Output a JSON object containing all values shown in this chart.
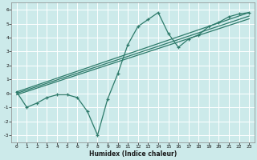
{
  "xlabel": "Humidex (Indice chaleur)",
  "background_color": "#cceaea",
  "grid_color": "#ffffff",
  "line_color": "#2d7a6a",
  "xlim": [
    -0.5,
    23.5
  ],
  "ylim": [
    -3.5,
    6.5
  ],
  "xticks": [
    0,
    1,
    2,
    3,
    4,
    5,
    6,
    7,
    8,
    9,
    10,
    11,
    12,
    13,
    14,
    15,
    16,
    17,
    18,
    19,
    20,
    21,
    22,
    23
  ],
  "yticks": [
    -3,
    -2,
    -1,
    0,
    1,
    2,
    3,
    4,
    5,
    6
  ],
  "line1_x": [
    0,
    1,
    2,
    3,
    4,
    5,
    6,
    7,
    8,
    9,
    10,
    11,
    12,
    13,
    14,
    15,
    16,
    17,
    18,
    19,
    20,
    21,
    22,
    23
  ],
  "line1_y": [
    0.1,
    -1.0,
    -0.7,
    -0.3,
    -0.1,
    -0.1,
    -0.3,
    -1.3,
    -3.0,
    -0.4,
    1.4,
    3.5,
    4.8,
    5.3,
    5.8,
    4.3,
    3.3,
    3.9,
    4.2,
    4.8,
    5.1,
    5.5,
    5.7,
    5.8
  ],
  "line2_x": [
    0,
    23
  ],
  "line2_y": [
    0.1,
    5.8
  ],
  "line3_x": [
    0,
    23
  ],
  "line3_y": [
    0.0,
    5.55
  ],
  "line4_x": [
    0,
    23
  ],
  "line4_y": [
    -0.1,
    5.35
  ]
}
